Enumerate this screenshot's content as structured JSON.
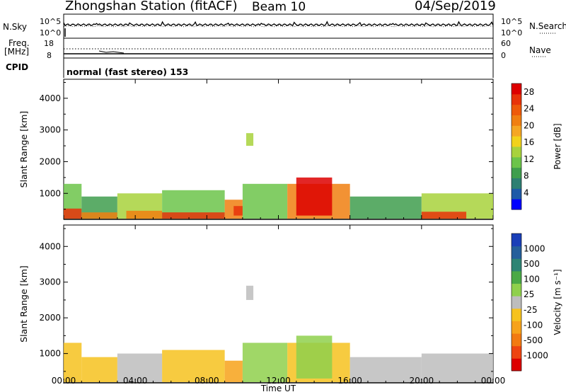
{
  "header": {
    "station": "Zhongshan Station (fitACF)",
    "beam": "Beam 10",
    "date": "04/Sep/2019"
  },
  "side_labels": {
    "nsky": "N.Sky",
    "nsearch": "N.Search",
    "freq_line1": "Freq.",
    "freq_line2": "[MHz]",
    "nave": "Nave",
    "cpid": "CPID"
  },
  "cpid_text": "normal (fast stereo) 153",
  "noise_axis": {
    "left_top": "10^5",
    "left_bottom": "10^0",
    "right_top": "10^5",
    "right_bottom": "10^0"
  },
  "freq_axis": {
    "left_top": "18",
    "left_bottom": "8",
    "right_top": "60",
    "right_bottom": "0"
  },
  "colors": {
    "power_scale": [
      "#0000ff",
      "#1e5aa8",
      "#2e7f72",
      "#3f9e4d",
      "#6cc44a",
      "#a8d23c",
      "#f2d21a",
      "#f5a623",
      "#f07f11",
      "#ee5a0a",
      "#e8330a",
      "#dd0000"
    ],
    "velocity_scale": [
      "#dd0000",
      "#ee4411",
      "#f27a11",
      "#f7a21a",
      "#f6c21e",
      "#bdbdbd",
      "#8fd04c",
      "#4aa946",
      "#2e8474",
      "#255f9b",
      "#1a3fb8"
    ]
  },
  "chart_data": [
    {
      "type": "heatmap",
      "name": "power-panel",
      "ylabel": "Slant Range [km]",
      "xlabel": "",
      "x_ticks": [
        "00:00",
        "04:00",
        "08:00",
        "12:00",
        "16:00",
        "20:00",
        "00:00"
      ],
      "y_ticks": [
        "1000",
        "2000",
        "3000",
        "4000"
      ],
      "ylim": [
        180,
        4600
      ],
      "xlim_hours": [
        0,
        24
      ],
      "colorbar_label": "Power [dB]",
      "colorbar_ticks": [
        "4",
        "8",
        "12",
        "16",
        "20",
        "24",
        "28"
      ],
      "colorbar_range": [
        0,
        30
      ],
      "segments": [
        {
          "t0": 0.0,
          "t1": 1.0,
          "r0": 200,
          "r1": 1300,
          "v": 10
        },
        {
          "t0": 0.0,
          "t1": 1.0,
          "r0": 200,
          "r1": 520,
          "v": 26
        },
        {
          "t0": 1.0,
          "t1": 3.0,
          "r0": 200,
          "r1": 900,
          "v": 9
        },
        {
          "t0": 1.0,
          "t1": 3.0,
          "r0": 200,
          "r1": 400,
          "v": 22
        },
        {
          "t0": 3.0,
          "t1": 5.5,
          "r0": 200,
          "r1": 1000,
          "v": 13
        },
        {
          "t0": 3.5,
          "t1": 5.5,
          "r0": 200,
          "r1": 450,
          "v": 22
        },
        {
          "t0": 5.5,
          "t1": 9.0,
          "r0": 200,
          "r1": 1100,
          "v": 11
        },
        {
          "t0": 5.5,
          "t1": 9.0,
          "r0": 200,
          "r1": 400,
          "v": 26
        },
        {
          "t0": 9.0,
          "t1": 10.0,
          "r0": 200,
          "r1": 800,
          "v": 20
        },
        {
          "t0": 9.5,
          "t1": 10.0,
          "r0": 300,
          "r1": 600,
          "v": 27
        },
        {
          "t0": 10.2,
          "t1": 10.6,
          "r0": 2500,
          "r1": 2900,
          "v": 14
        },
        {
          "t0": 10.0,
          "t1": 12.5,
          "r0": 200,
          "r1": 1300,
          "v": 12
        },
        {
          "t0": 12.5,
          "t1": 16.0,
          "r0": 200,
          "r1": 1300,
          "v": 22
        },
        {
          "t0": 13.0,
          "t1": 15.0,
          "r0": 300,
          "r1": 1500,
          "v": 28
        },
        {
          "t0": 16.0,
          "t1": 20.0,
          "r0": 200,
          "r1": 900,
          "v": 9
        },
        {
          "t0": 20.0,
          "t1": 24.0,
          "r0": 200,
          "r1": 1000,
          "v": 13
        },
        {
          "t0": 20.0,
          "t1": 22.5,
          "r0": 200,
          "r1": 420,
          "v": 27
        }
      ]
    },
    {
      "type": "heatmap",
      "name": "velocity-panel",
      "ylabel": "Slant Range [km]",
      "xlabel": "Time UT",
      "x_ticks": [
        "00:00",
        "04:00",
        "08:00",
        "12:00",
        "16:00",
        "20:00",
        "00:00"
      ],
      "y_ticks": [
        "1000",
        "2000",
        "3000",
        "4000"
      ],
      "ylim": [
        180,
        4600
      ],
      "xlim_hours": [
        0,
        24
      ],
      "colorbar_label": "Velocity [m s⁻¹]",
      "colorbar_ticks": [
        "1000",
        "500",
        "100",
        "25",
        "-25",
        "-100",
        "-500",
        "-1000"
      ],
      "colorbar_range": [
        -1200,
        1200
      ],
      "segments": [
        {
          "t0": 0.0,
          "t1": 1.0,
          "r0": 200,
          "r1": 1300,
          "v": -300
        },
        {
          "t0": 1.0,
          "t1": 3.0,
          "r0": 200,
          "r1": 900,
          "v": -150
        },
        {
          "t0": 3.0,
          "t1": 5.5,
          "r0": 200,
          "r1": 1000,
          "v": 100
        },
        {
          "t0": 5.5,
          "t1": 9.0,
          "r0": 200,
          "r1": 1100,
          "v": -200
        },
        {
          "t0": 9.0,
          "t1": 10.0,
          "r0": 200,
          "r1": 800,
          "v": -400
        },
        {
          "t0": 10.2,
          "t1": 10.6,
          "r0": 2500,
          "r1": 2900,
          "v": -100
        },
        {
          "t0": 10.0,
          "t1": 12.5,
          "r0": 200,
          "r1": 1300,
          "v": 200
        },
        {
          "t0": 12.5,
          "t1": 16.0,
          "r0": 200,
          "r1": 1300,
          "v": -300
        },
        {
          "t0": 13.0,
          "t1": 15.0,
          "r0": 300,
          "r1": 1500,
          "v": 300
        },
        {
          "t0": 16.0,
          "t1": 20.0,
          "r0": 200,
          "r1": 900,
          "v": -80
        },
        {
          "t0": 20.0,
          "t1": 24.0,
          "r0": 200,
          "r1": 1000,
          "v": 0
        }
      ]
    }
  ]
}
